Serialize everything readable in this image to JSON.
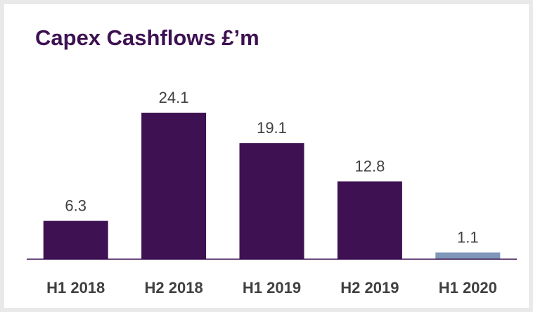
{
  "chart_data": {
    "type": "bar",
    "title": "Capex Cashflows £’m",
    "categories": [
      "H1 2018",
      "H2 2018",
      "H1 2019",
      "H2 2019",
      "H1 2020"
    ],
    "values": [
      6.3,
      24.1,
      19.1,
      12.8,
      1.1
    ],
    "colors": [
      "#3d1152",
      "#3d1152",
      "#3d1152",
      "#3d1152",
      "#8097b9"
    ]
  }
}
